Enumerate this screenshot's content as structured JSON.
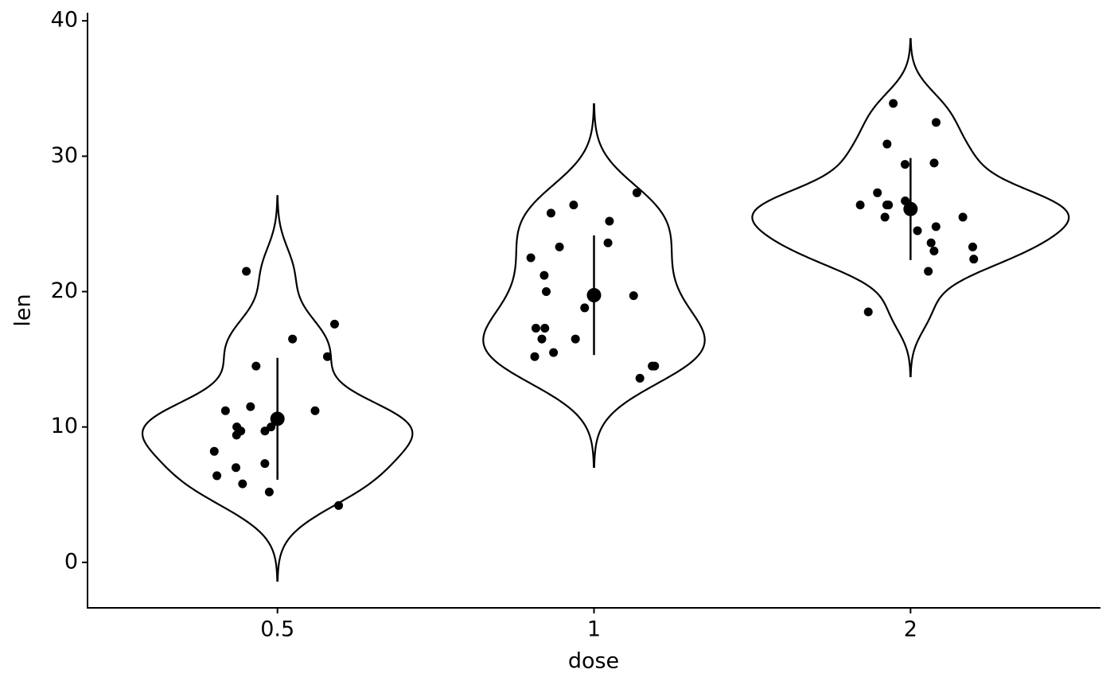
{
  "chart_data": {
    "type": "violin",
    "x_label": "dose",
    "y_label": "len",
    "categories": [
      "0.5",
      "1",
      "2"
    ],
    "values": [
      [
        4.2,
        11.5,
        7.3,
        5.8,
        6.4,
        10,
        11.2,
        11.2,
        5.2,
        7,
        15.2,
        21.5,
        17.6,
        9.7,
        14.5,
        10,
        8.2,
        9.4,
        16.5,
        9.7
      ],
      [
        16.5,
        16.5,
        15.2,
        17.3,
        22.5,
        17.3,
        13.6,
        14.5,
        18.8,
        15.5,
        19.7,
        23.3,
        23.6,
        26.4,
        20,
        25.2,
        25.8,
        21.2,
        14.5,
        27.3
      ],
      [
        23.6,
        18.5,
        33.9,
        25.5,
        26.4,
        32.5,
        26.7,
        21.5,
        23.3,
        29.5,
        25.5,
        26.4,
        22.4,
        24.5,
        24.8,
        30.9,
        26.4,
        27.3,
        29.4,
        23
      ]
    ],
    "means": [
      10.605,
      19.735,
      26.1
    ],
    "sds": [
      4.5,
      4.42,
      3.77
    ],
    "color": "#000000",
    "ylim": [
      -3.36,
      40.6
    ],
    "yticks": [
      0,
      10,
      20,
      30,
      40
    ]
  }
}
